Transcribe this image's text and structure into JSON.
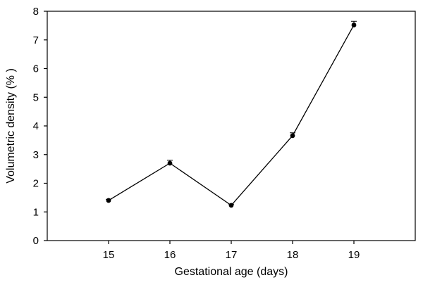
{
  "chart_data": {
    "type": "line",
    "title": "",
    "xlabel": "Gestational age (days)",
    "ylabel": "Volumetric density (% )",
    "x": [
      15,
      16,
      17,
      18,
      19
    ],
    "y": [
      1.4,
      2.7,
      1.23,
      3.66,
      7.52
    ],
    "error": [
      0.04,
      0.1,
      0.04,
      0.1,
      0.13
    ],
    "xlim": [
      14,
      20
    ],
    "ylim": [
      0,
      8
    ],
    "xticks": [
      "15",
      "16",
      "17",
      "18",
      "19"
    ],
    "yticks": [
      "0",
      "1",
      "2",
      "3",
      "4",
      "5",
      "6",
      "7",
      "8"
    ],
    "grid": false,
    "legend": "none",
    "color": "#000000"
  }
}
